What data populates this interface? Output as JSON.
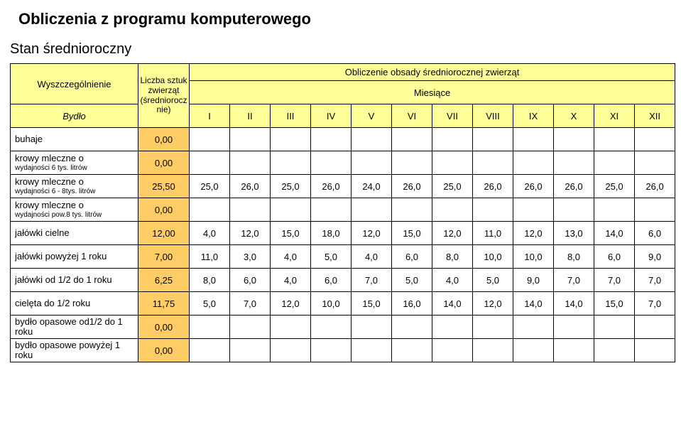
{
  "title": "Obliczenia z programu komputerowego",
  "subtitle": "Stan średnioroczny",
  "header": {
    "spec_label": "Wyszczególnienie",
    "spec_sub": "Bydło",
    "count_label_lines": [
      "Liczba sztuk",
      "zwierząt",
      "(średniorocz",
      "nie)"
    ],
    "calc_header": "Obliczenie obsady średniorocznej zwierząt",
    "months_label": "Miesiące",
    "months": [
      "I",
      "II",
      "III",
      "IV",
      "V",
      "VI",
      "VII",
      "VIII",
      "IX",
      "X",
      "XI",
      "XII"
    ]
  },
  "rows": [
    {
      "label": "buhaje",
      "sub": "",
      "count": "0,00",
      "vals": [
        "",
        "",
        "",
        "",
        "",
        "",
        "",
        "",
        "",
        "",
        "",
        ""
      ]
    },
    {
      "label": "krowy mleczne o",
      "sub": "wydajności 6 tys. litrów",
      "count": "0,00",
      "vals": [
        "",
        "",
        "",
        "",
        "",
        "",
        "",
        "",
        "",
        "",
        "",
        ""
      ]
    },
    {
      "label": "krowy mleczne o",
      "sub": "wydajności 6 - 8tys. litrów",
      "count": "25,50",
      "vals": [
        "25,0",
        "26,0",
        "25,0",
        "26,0",
        "24,0",
        "26,0",
        "25,0",
        "26,0",
        "26,0",
        "26,0",
        "25,0",
        "26,0"
      ]
    },
    {
      "label": "krowy mleczne o",
      "sub": "wydajności pow.8 tys. litrów",
      "count": "0,00",
      "vals": [
        "",
        "",
        "",
        "",
        "",
        "",
        "",
        "",
        "",
        "",
        "",
        ""
      ]
    },
    {
      "label": "jałówki cielne",
      "sub": "",
      "count": "12,00",
      "vals": [
        "4,0",
        "12,0",
        "15,0",
        "18,0",
        "12,0",
        "15,0",
        "12,0",
        "11,0",
        "12,0",
        "13,0",
        "14,0",
        "6,0"
      ]
    },
    {
      "label": "jałówki powyżej 1 roku",
      "sub": "",
      "count": "7,00",
      "vals": [
        "11,0",
        "3,0",
        "4,0",
        "5,0",
        "4,0",
        "6,0",
        "8,0",
        "10,0",
        "10,0",
        "8,0",
        "6,0",
        "9,0"
      ]
    },
    {
      "label": "jałówki od 1/2 do 1 roku",
      "sub": "",
      "count": "6,25",
      "vals": [
        "8,0",
        "6,0",
        "4,0",
        "6,0",
        "7,0",
        "5,0",
        "4,0",
        "5,0",
        "9,0",
        "7,0",
        "7,0",
        "7,0"
      ]
    },
    {
      "label": "cielęta do 1/2 roku",
      "sub": "",
      "count": "11,75",
      "vals": [
        "5,0",
        "7,0",
        "12,0",
        "10,0",
        "15,0",
        "16,0",
        "14,0",
        "12,0",
        "14,0",
        "14,0",
        "15,0",
        "7,0"
      ]
    },
    {
      "label": "bydło opasowe od1/2 do 1 roku",
      "sub": "",
      "count": "0,00",
      "vals": [
        "",
        "",
        "",
        "",
        "",
        "",
        "",
        "",
        "",
        "",
        "",
        ""
      ]
    },
    {
      "label": "bydło opasowe powyżej 1 roku",
      "sub": "",
      "count": "0,00",
      "vals": [
        "",
        "",
        "",
        "",
        "",
        "",
        "",
        "",
        "",
        "",
        "",
        ""
      ]
    }
  ],
  "colors": {
    "header_bg": "#ffff99",
    "count_bg": "#ffcc66",
    "border": "#000000",
    "bg": "#ffffff",
    "text": "#000000"
  }
}
